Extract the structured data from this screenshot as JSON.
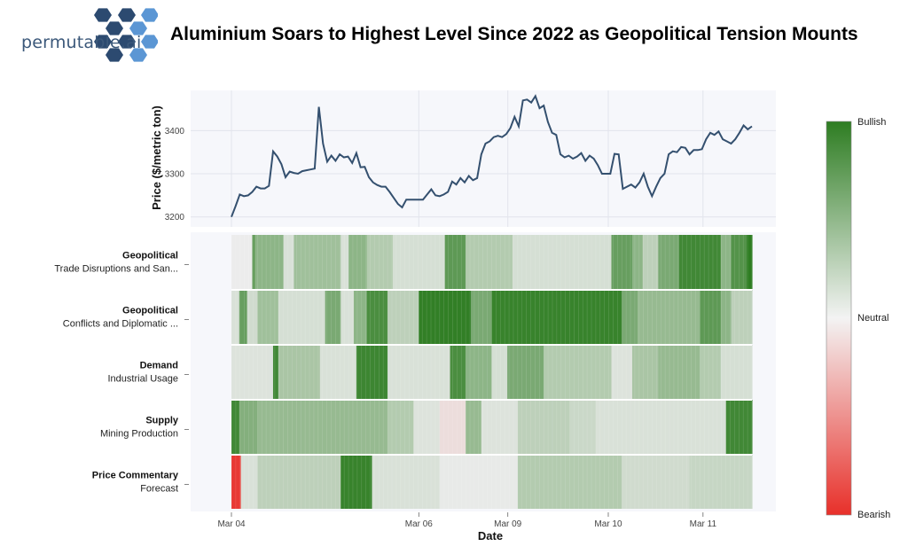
{
  "brand": {
    "name": "permutable.ai"
  },
  "title": "Aluminium Soars to Highest Level Since 2022 as Geopolitical Tension Mounts",
  "colors": {
    "line": "#34506f",
    "bullish": "#2e7d22",
    "neutral": "#ececec",
    "bearish": "#e8302a",
    "panel_bg": "#f6f7fb",
    "logo_dark": "#2c4a70",
    "logo_light": "#5b96d4"
  },
  "chart_data": {
    "type": "line",
    "ylabel": "Price ($/metric ton)",
    "xlabel": "Date",
    "yticks": [
      3200,
      3300,
      3400
    ],
    "ylim": [
      3185,
      3485
    ],
    "xticks": [
      {
        "label": "Mar 04",
        "pos": 0.0
      },
      {
        "label": "Mar 06",
        "pos": 0.36
      },
      {
        "label": "Mar 09",
        "pos": 0.531
      },
      {
        "label": "Mar 10",
        "pos": 0.724
      },
      {
        "label": "Mar 11",
        "pos": 0.906
      }
    ],
    "price": [
      3200,
      3225,
      3252,
      3248,
      3250,
      3258,
      3270,
      3266,
      3266,
      3272,
      3352,
      3340,
      3322,
      3292,
      3305,
      3302,
      3300,
      3306,
      3308,
      3310,
      3312,
      3455,
      3370,
      3328,
      3342,
      3330,
      3345,
      3338,
      3340,
      3325,
      3348,
      3315,
      3316,
      3292,
      3280,
      3274,
      3270,
      3270,
      3258,
      3244,
      3230,
      3222,
      3240,
      3240,
      3240,
      3240,
      3240,
      3252,
      3264,
      3250,
      3248,
      3252,
      3258,
      3282,
      3275,
      3290,
      3280,
      3295,
      3285,
      3290,
      3345,
      3370,
      3375,
      3385,
      3388,
      3385,
      3392,
      3406,
      3432,
      3410,
      3470,
      3472,
      3465,
      3480,
      3452,
      3458,
      3420,
      3395,
      3390,
      3345,
      3338,
      3342,
      3335,
      3340,
      3348,
      3330,
      3342,
      3335,
      3320,
      3300,
      3300,
      3300,
      3346,
      3345,
      3265,
      3270,
      3275,
      3268,
      3280,
      3300,
      3270,
      3248,
      3270,
      3290,
      3300,
      3345,
      3352,
      3350,
      3362,
      3360,
      3345,
      3355,
      3355,
      3357,
      3380,
      3395,
      3390,
      3398,
      3380,
      3375,
      3370,
      3380,
      3395,
      3412,
      3403,
      3410
    ],
    "heatmap": {
      "rows": [
        {
          "category": "Geopolitical",
          "topic": "Trade Disruptions and San...",
          "segments": [
            [
              0,
              0.04,
              0.0
            ],
            [
              0.04,
              0.045,
              0.75
            ],
            [
              0.045,
              0.1,
              0.5
            ],
            [
              0.1,
              0.12,
              0.1
            ],
            [
              0.12,
              0.21,
              0.4
            ],
            [
              0.21,
              0.225,
              0.1
            ],
            [
              0.225,
              0.26,
              0.5
            ],
            [
              0.26,
              0.31,
              0.3
            ],
            [
              0.31,
              0.41,
              0.12
            ],
            [
              0.41,
              0.45,
              0.75
            ],
            [
              0.45,
              0.54,
              0.3
            ],
            [
              0.54,
              0.73,
              0.12
            ],
            [
              0.73,
              0.77,
              0.7
            ],
            [
              0.77,
              0.79,
              0.5
            ],
            [
              0.79,
              0.82,
              0.25
            ],
            [
              0.82,
              0.86,
              0.6
            ],
            [
              0.86,
              0.94,
              0.9
            ],
            [
              0.94,
              0.96,
              0.5
            ],
            [
              0.96,
              0.99,
              0.8
            ],
            [
              0.99,
              1.0,
              1.0
            ]
          ]
        },
        {
          "category": "Geopolitical",
          "topic": "Conflicts and Diplomatic ...",
          "segments": [
            [
              0,
              0.015,
              0.1
            ],
            [
              0.015,
              0.03,
              0.7
            ],
            [
              0.03,
              0.05,
              0.15
            ],
            [
              0.05,
              0.09,
              0.4
            ],
            [
              0.09,
              0.18,
              0.12
            ],
            [
              0.18,
              0.21,
              0.6
            ],
            [
              0.21,
              0.235,
              0.1
            ],
            [
              0.235,
              0.26,
              0.5
            ],
            [
              0.26,
              0.3,
              0.85
            ],
            [
              0.3,
              0.36,
              0.25
            ],
            [
              0.36,
              0.46,
              0.98
            ],
            [
              0.46,
              0.5,
              0.6
            ],
            [
              0.5,
              0.75,
              0.95
            ],
            [
              0.75,
              0.78,
              0.6
            ],
            [
              0.78,
              0.9,
              0.45
            ],
            [
              0.9,
              0.94,
              0.75
            ],
            [
              0.94,
              0.96,
              0.5
            ],
            [
              0.96,
              1.0,
              0.25
            ]
          ]
        },
        {
          "category": "Demand",
          "topic": "Industrial Usage",
          "segments": [
            [
              0,
              0.08,
              0.08
            ],
            [
              0.08,
              0.09,
              0.9
            ],
            [
              0.09,
              0.17,
              0.35
            ],
            [
              0.17,
              0.24,
              0.1
            ],
            [
              0.24,
              0.3,
              0.92
            ],
            [
              0.3,
              0.42,
              0.1
            ],
            [
              0.42,
              0.45,
              0.85
            ],
            [
              0.45,
              0.5,
              0.5
            ],
            [
              0.5,
              0.53,
              0.12
            ],
            [
              0.53,
              0.6,
              0.6
            ],
            [
              0.6,
              0.73,
              0.3
            ],
            [
              0.73,
              0.77,
              0.08
            ],
            [
              0.77,
              0.82,
              0.35
            ],
            [
              0.82,
              0.9,
              0.45
            ],
            [
              0.9,
              0.94,
              0.3
            ],
            [
              0.94,
              1.0,
              0.12
            ]
          ]
        },
        {
          "category": "Supply",
          "topic": "Mining Production",
          "segments": [
            [
              0,
              0.015,
              0.9
            ],
            [
              0.015,
              0.05,
              0.55
            ],
            [
              0.05,
              0.3,
              0.45
            ],
            [
              0.3,
              0.35,
              0.3
            ],
            [
              0.35,
              0.4,
              0.08
            ],
            [
              0.4,
              0.45,
              -0.08
            ],
            [
              0.45,
              0.48,
              0.45
            ],
            [
              0.48,
              0.55,
              0.08
            ],
            [
              0.55,
              0.65,
              0.25
            ],
            [
              0.65,
              0.7,
              0.18
            ],
            [
              0.7,
              0.95,
              0.1
            ],
            [
              0.95,
              1.0,
              0.9
            ]
          ]
        },
        {
          "category": "Price Commentary",
          "topic": "Forecast",
          "segments": [
            [
              0,
              0.018,
              -0.95
            ],
            [
              0.018,
              0.05,
              0.1
            ],
            [
              0.05,
              0.21,
              0.25
            ],
            [
              0.21,
              0.27,
              0.95
            ],
            [
              0.27,
              0.4,
              0.1
            ],
            [
              0.4,
              0.55,
              0.02
            ],
            [
              0.55,
              0.75,
              0.3
            ],
            [
              0.75,
              0.88,
              0.15
            ],
            [
              0.88,
              1.0,
              0.2
            ]
          ]
        }
      ]
    },
    "colorbar": {
      "top": "Bullish",
      "middle": "Neutral",
      "bottom": "Bearish"
    }
  }
}
